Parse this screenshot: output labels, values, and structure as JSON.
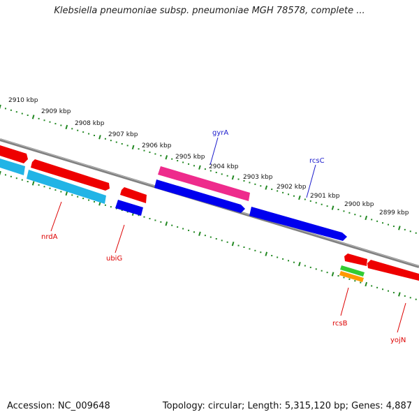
{
  "title": "Klebsiella pneumoniae subsp. pneumoniae MGH 78578, complete ...",
  "footer": {
    "accession": "Accession: NC_009648",
    "summary": "Topology: circular; Length: 5,315,120 bp; Genes: 4,887"
  },
  "ruler": {
    "labels": [
      "2910 kbp",
      "2909 kbp",
      "2908 kbp",
      "2907 kbp",
      "2906 kbp",
      "2905 kbp",
      "2904 kbp",
      "2903 kbp",
      "2902 kbp",
      "2901 kbp",
      "2900 kbp",
      "2899 kbp"
    ]
  },
  "genes": [
    {
      "name": "gyrA",
      "color": "#1a1acc"
    },
    {
      "name": "rcsC",
      "color": "#1a1acc"
    },
    {
      "name": "nrdA",
      "color": "#dd0000"
    },
    {
      "name": "ubiG",
      "color": "#dd0000"
    },
    {
      "name": "rcsB",
      "color": "#dd0000"
    },
    {
      "name": "yojN",
      "color": "#dd0000"
    }
  ],
  "colors": {
    "backbone": "#808080",
    "ticks": "#228822",
    "red": "#ee0000",
    "blue": "#0000ee",
    "cyan": "#22b4e6",
    "magenta": "#ee2b8c",
    "green": "#33cc33",
    "orange": "#ff9900"
  }
}
